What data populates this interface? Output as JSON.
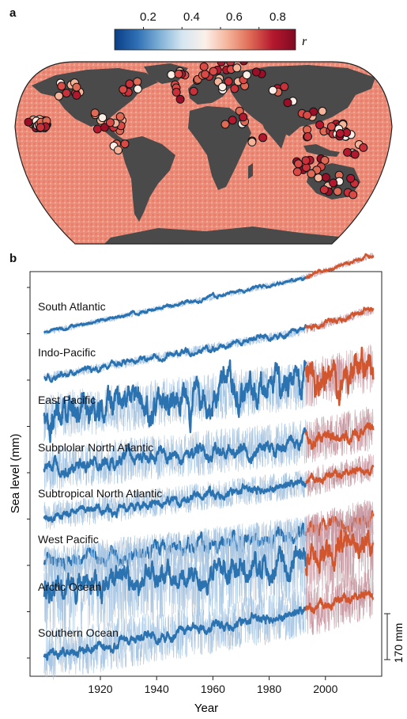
{
  "panel_a": {
    "label": "a",
    "colorbar": {
      "ticks": [
        "0.2",
        "0.4",
        "0.6",
        "0.8"
      ],
      "tick_values": [
        0.2,
        0.4,
        0.6,
        0.8
      ],
      "range": [
        0.05,
        0.99
      ],
      "symbol": "r",
      "colormap": [
        "#0b3f86",
        "#2f6fb4",
        "#7fb1d6",
        "#d6e6f1",
        "#fbf0ea",
        "#f4b49a",
        "#de6a55",
        "#b4182e",
        "#7f0b22"
      ]
    },
    "map": {
      "land_color": "#4a4a4a",
      "ocean_color": "#e98c79"
    }
  },
  "panel_b": {
    "label": "b",
    "ylabel": "Sea level (mm)",
    "xlabel": "Year",
    "scale_bar_label": "170 mm",
    "colors": {
      "reconstruction": "#2b72b0",
      "reconstruction_raw": "#a9c6e2",
      "altimetry": "#d2562d",
      "altimetry_raw": "#c99aa3"
    }
  },
  "chart_data": {
    "type": "line",
    "xlabel": "Year",
    "ylabel": "Sea level (mm)",
    "xlim": [
      1895,
      2020
    ],
    "xticks": [
      1920,
      1940,
      1960,
      1980,
      2000
    ],
    "scale_bar_mm": 170,
    "series": [
      {
        "name": "South Atlantic",
        "start": 1900,
        "break": 1993,
        "end": 2017,
        "rise": 255,
        "noise": 4,
        "wiggle": 3
      },
      {
        "name": "Indo-Pacific",
        "start": 1900,
        "break": 1993,
        "end": 2017,
        "rise": 220,
        "noise": 6,
        "wiggle": 5
      },
      {
        "name": "East Pacific",
        "start": 1900,
        "break": 1993,
        "end": 2017,
        "rise": 150,
        "noise": 30,
        "wiggle": 28
      },
      {
        "name": "Subplolar North Atlantic",
        "start": 1900,
        "break": 1993,
        "end": 2017,
        "rise": 120,
        "noise": 28,
        "wiggle": 12
      },
      {
        "name": "Subtropical North Atlantic",
        "start": 1900,
        "break": 1993,
        "end": 2017,
        "rise": 150,
        "noise": 18,
        "wiggle": 8
      },
      {
        "name": "West Pacific",
        "start": 1900,
        "break": 1993,
        "end": 2017,
        "rise": 140,
        "noise": 22,
        "wiggle": 12
      },
      {
        "name": "Arctic Ocean",
        "start": 1900,
        "break": 1993,
        "end": 2017,
        "rise": 160,
        "noise": 55,
        "wiggle": 22
      },
      {
        "name": "Southern Ocean",
        "start": 1900,
        "break": 1993,
        "end": 2017,
        "rise": 200,
        "noise": 32,
        "wiggle": 9
      }
    ]
  }
}
